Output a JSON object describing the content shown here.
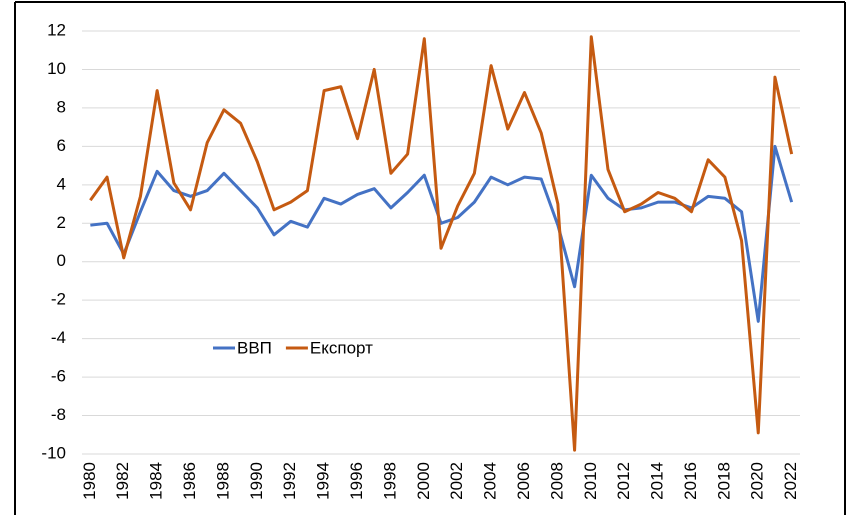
{
  "chart_data": {
    "type": "line",
    "x": [
      1980,
      1981,
      1982,
      1983,
      1984,
      1985,
      1986,
      1987,
      1988,
      1989,
      1990,
      1991,
      1992,
      1993,
      1994,
      1995,
      1996,
      1997,
      1998,
      1999,
      2000,
      2001,
      2002,
      2003,
      2004,
      2005,
      2006,
      2007,
      2008,
      2009,
      2010,
      2011,
      2012,
      2013,
      2014,
      2015,
      2016,
      2017,
      2018,
      2019,
      2020,
      2021,
      2022
    ],
    "series": [
      {
        "name": "ВВП",
        "color": "#4472c4",
        "values": [
          1.9,
          2.0,
          0.4,
          2.6,
          4.7,
          3.7,
          3.4,
          3.7,
          4.6,
          3.7,
          2.8,
          1.4,
          2.1,
          1.8,
          3.3,
          3.0,
          3.5,
          3.8,
          2.8,
          3.6,
          4.5,
          2.0,
          2.3,
          3.1,
          4.4,
          4.0,
          4.4,
          4.3,
          1.9,
          -1.3,
          4.5,
          3.3,
          2.7,
          2.8,
          3.1,
          3.1,
          2.8,
          3.4,
          3.3,
          2.6,
          -3.1,
          6.0,
          3.1
        ]
      },
      {
        "name": "Експорт",
        "color": "#c55a11",
        "values": [
          3.2,
          4.4,
          0.2,
          3.4,
          8.9,
          4.1,
          2.7,
          6.2,
          7.9,
          7.2,
          5.2,
          2.7,
          3.1,
          3.7,
          8.9,
          9.1,
          6.4,
          10.0,
          4.6,
          5.6,
          11.6,
          0.7,
          2.9,
          4.6,
          10.2,
          6.9,
          8.8,
          6.7,
          3.0,
          -9.8,
          11.7,
          4.8,
          2.6,
          3.0,
          3.6,
          3.3,
          2.6,
          5.3,
          4.4,
          1.1,
          -8.9,
          9.6,
          5.6
        ]
      }
    ],
    "xlim": [
      1979.5,
      2022.5
    ],
    "xticks": [
      1980,
      1982,
      1984,
      1986,
      1988,
      1990,
      1992,
      1994,
      1996,
      1998,
      2000,
      2002,
      2004,
      2006,
      2008,
      2010,
      2012,
      2014,
      2016,
      2018,
      2020,
      2022
    ],
    "ylim": [
      -10,
      12
    ],
    "yticks": [
      -10,
      -8,
      -6,
      -4,
      -2,
      0,
      2,
      4,
      6,
      8,
      10,
      12
    ],
    "grid": true
  }
}
